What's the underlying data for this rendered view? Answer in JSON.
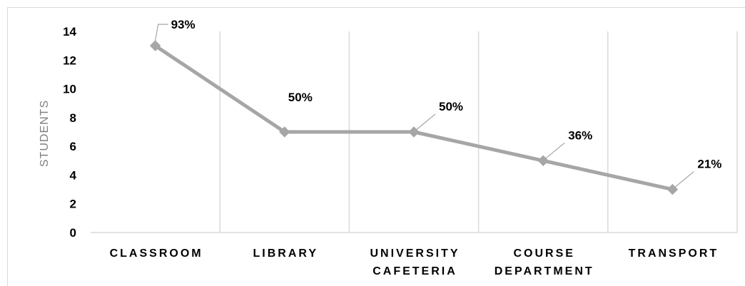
{
  "chart_data": {
    "type": "line",
    "title": "",
    "xlabel": "",
    "ylabel": "STUDENTS",
    "categories": [
      "CLASSROOM",
      "LIBRARY",
      "UNIVERSITY CAFETERIA",
      "COURSE DEPARTMENT",
      "TRANSPORT"
    ],
    "category_lines": [
      [
        "CLASSROOM"
      ],
      [
        "LIBRARY"
      ],
      [
        "UNIVERSITY",
        "CAFETERIA"
      ],
      [
        "COURSE",
        "DEPARTMENT"
      ],
      [
        "TRANSPORT"
      ]
    ],
    "series": [
      {
        "values": [
          13,
          7,
          7,
          5,
          3
        ],
        "data_labels": [
          "93%",
          "50%",
          "50%",
          "36%",
          "21%"
        ]
      }
    ],
    "ylim": [
      0,
      14
    ],
    "yticks": [
      0,
      2,
      4,
      6,
      8,
      10,
      12,
      14
    ],
    "grid": "vertical",
    "legend": "none",
    "colors": {
      "series_line": "#a6a6a6",
      "marker": "#a6a6a6",
      "gridline": "#d9d9d9",
      "axis_title": "#7f7f7f"
    }
  }
}
